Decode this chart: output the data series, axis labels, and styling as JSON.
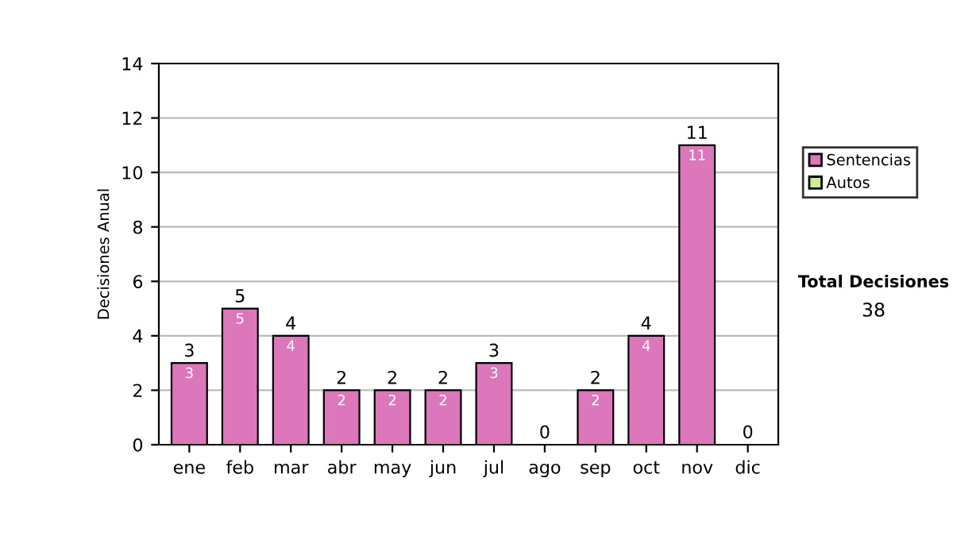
{
  "chart_data": {
    "type": "bar",
    "stacked": true,
    "ylabel": "Decisiones Anual",
    "categories": [
      "ene",
      "feb",
      "mar",
      "abr",
      "may",
      "jun",
      "jul",
      "ago",
      "sep",
      "oct",
      "nov",
      "dic"
    ],
    "series": [
      {
        "name": "Sentencias",
        "color": "#dd77bb",
        "values": [
          3,
          5,
          4,
          2,
          2,
          2,
          3,
          0,
          2,
          4,
          11,
          0
        ],
        "value_labels": [
          "3",
          "5",
          "4",
          "2",
          "2",
          "2",
          "3",
          null,
          "2",
          "4",
          "11",
          null
        ]
      },
      {
        "name": "Autos",
        "color": "#ccee99",
        "values": [
          0,
          0,
          0,
          0,
          0,
          0,
          0,
          0,
          0,
          0,
          0,
          0
        ]
      }
    ],
    "totals": [
      "3",
      "5",
      "4",
      "2",
      "2",
      "2",
      "3",
      "0",
      "2",
      "4",
      "11",
      "0"
    ],
    "ylim": [
      0,
      14
    ],
    "yticks": [
      0,
      2,
      4,
      6,
      8,
      10,
      12,
      14
    ],
    "grid": "y",
    "legend": "right",
    "annotations": [
      "Total Decisiones",
      "38"
    ]
  }
}
